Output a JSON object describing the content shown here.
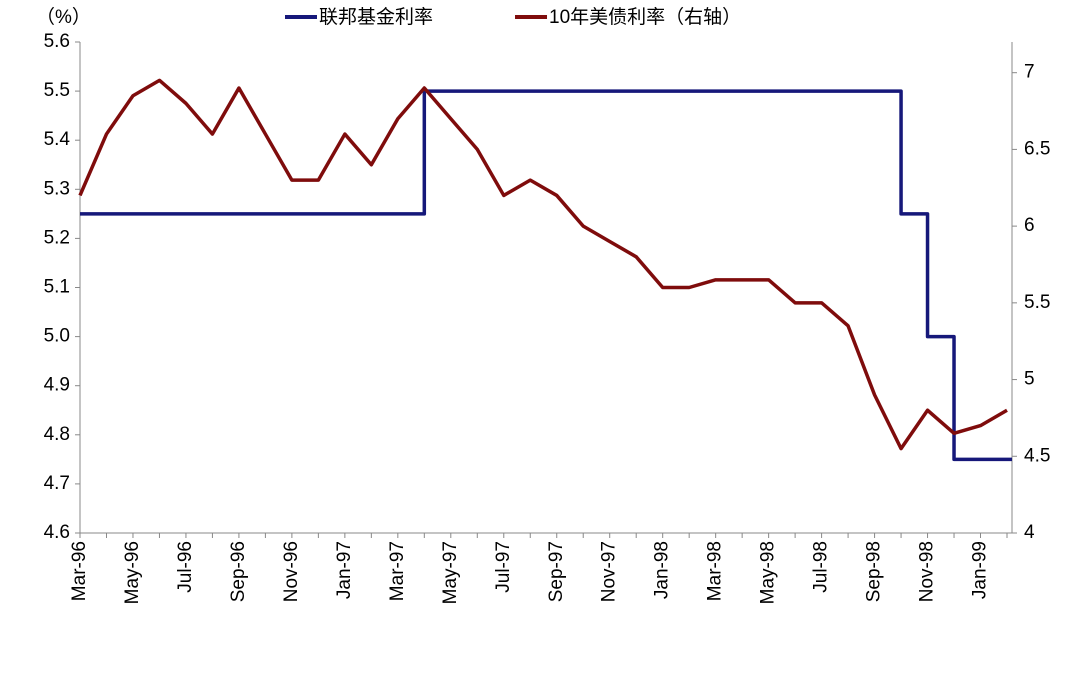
{
  "chart_data": {
    "type": "line",
    "y_label": "（%）",
    "categories": [
      "Mar-96",
      null,
      "May-96",
      null,
      "Jul-96",
      null,
      "Sep-96",
      null,
      "Nov-96",
      null,
      "Jan-97",
      null,
      "Mar-97",
      null,
      "May-97",
      null,
      "Jul-97",
      null,
      "Sep-97",
      null,
      "Nov-97",
      null,
      "Jan-98",
      null,
      "Mar-98",
      null,
      "May-98",
      null,
      "Jul-98",
      null,
      "Sep-98",
      null,
      "Nov-98",
      null,
      "Jan-99",
      null
    ],
    "series": [
      {
        "name": "联邦基金利率",
        "color": "#16187a",
        "step": true,
        "values": [
          5.25,
          5.25,
          5.25,
          5.25,
          5.25,
          5.25,
          5.25,
          5.25,
          5.25,
          5.25,
          5.25,
          5.25,
          5.25,
          5.5,
          5.5,
          5.5,
          5.5,
          5.5,
          5.5,
          5.5,
          5.5,
          5.5,
          5.5,
          5.5,
          5.5,
          5.5,
          5.5,
          5.5,
          5.5,
          5.5,
          5.5,
          5.25,
          5.0,
          4.75,
          4.75,
          4.75
        ]
      },
      {
        "name": "10年美债利率（右轴）",
        "color": "#7f0c0c",
        "axis": "y2",
        "values": [
          6.2,
          6.6,
          6.85,
          6.95,
          6.8,
          6.6,
          6.9,
          6.6,
          6.3,
          6.3,
          6.6,
          6.4,
          6.7,
          6.9,
          6.7,
          6.5,
          6.2,
          6.3,
          6.2,
          6.0,
          5.9,
          5.8,
          5.6,
          5.6,
          5.65,
          5.65,
          5.65,
          5.5,
          5.5,
          5.35,
          4.9,
          4.55,
          4.8,
          4.65,
          4.7,
          4.8
        ]
      }
    ],
    "ylim": [
      4.6,
      5.6
    ],
    "yticks": [
      4.6,
      4.7,
      4.8,
      4.9,
      {
        "value": 5,
        "label": "5.0"
      },
      5.1,
      5.2,
      5.3,
      5.4,
      5.5,
      5.6
    ],
    "y2lim": [
      4,
      7.2
    ],
    "y2ticks": [
      4,
      4.5,
      5,
      5.5,
      6,
      6.5,
      7
    ],
    "legend": "top"
  }
}
